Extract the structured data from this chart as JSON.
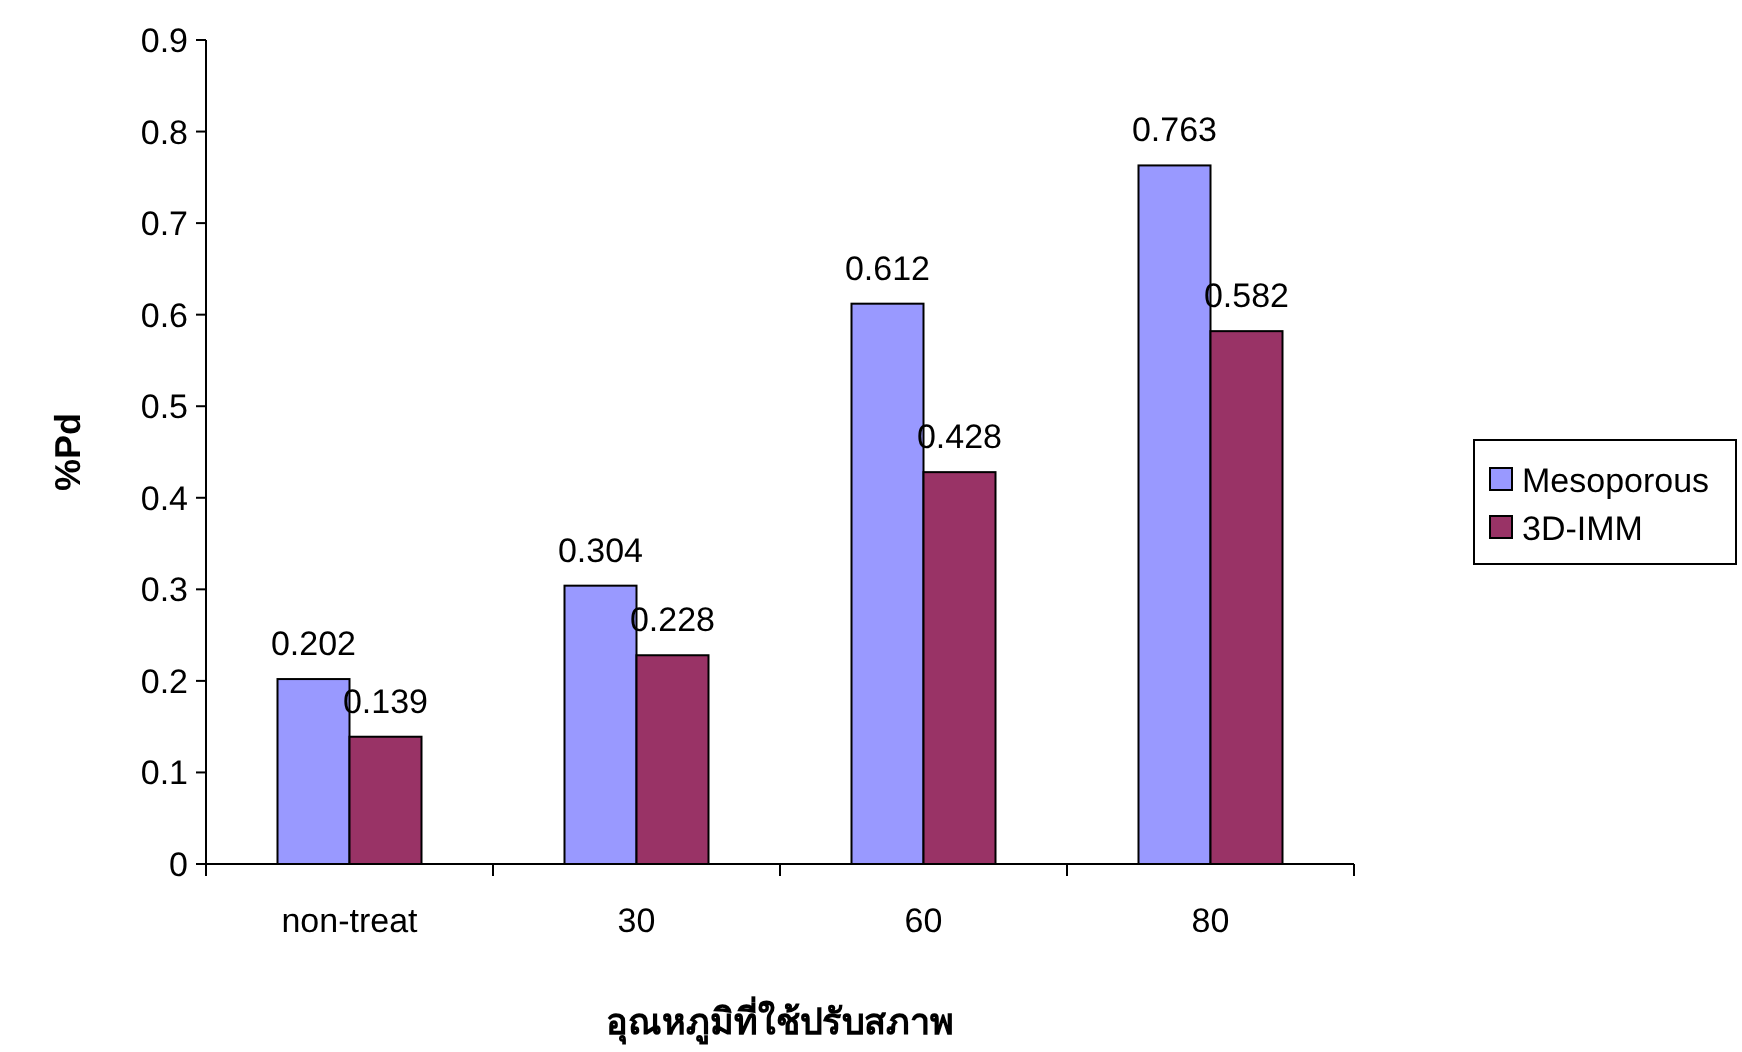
{
  "chart_data": {
    "type": "bar",
    "xlabel": "อุณหภูมิที่ใช้ปรับสภาพ",
    "ylabel": "%Pd",
    "categories": [
      "non-treat",
      "30",
      "60",
      "80"
    ],
    "series": [
      {
        "name": "Mesoporous",
        "color": "#9999ff",
        "values": [
          0.202,
          0.304,
          0.612,
          0.763
        ]
      },
      {
        "name": "3D-IMM",
        "color": "#993366",
        "values": [
          0.139,
          0.228,
          0.428,
          0.582
        ]
      }
    ],
    "ylim": [
      0,
      0.9
    ],
    "yticks": [
      0,
      0.1,
      0.2,
      0.3,
      0.4,
      0.5,
      0.6,
      0.7,
      0.8,
      0.9
    ],
    "data_labels": true,
    "legend": "right",
    "grid": false
  }
}
